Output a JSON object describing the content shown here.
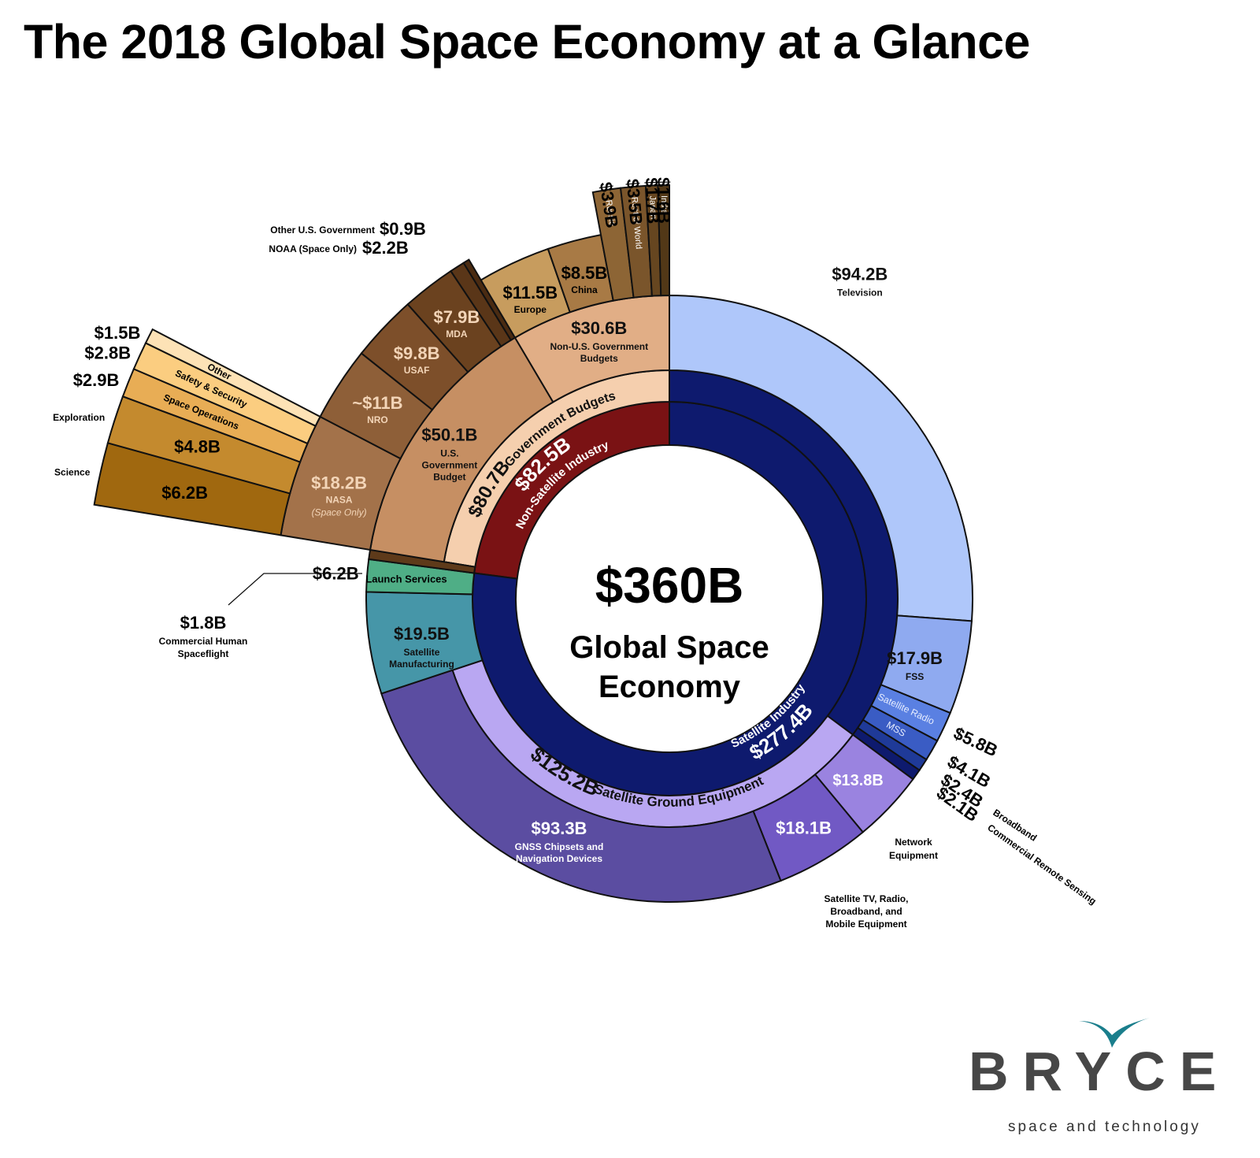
{
  "title": "The 2018 Global Space Economy at a Glance",
  "logo": {
    "wordmark": "BRYCE",
    "tagline": "space and technology",
    "color": "#474747",
    "accent": "#1a7e8c"
  },
  "chart_data": {
    "type": "sunburst",
    "total": {
      "value": "$360B",
      "label": "Global Space Economy"
    },
    "rings": {
      "inner": [
        {
          "id": "nonsat",
          "value": 82.5,
          "label_value": "$82.5B",
          "label": "Non-Satellite Industry",
          "color": "#7a1214"
        },
        {
          "id": "sat",
          "value": 277.4,
          "label_value": "$277.4B",
          "label": "Satellite Industry",
          "color": "#0e1a6e"
        }
      ],
      "middle": [
        {
          "parent": "nonsat",
          "value": 80.7,
          "label_value": "$80.7B",
          "label": "Government Budgets",
          "color": "#f5cfae"
        },
        {
          "parent": "nonsat",
          "value": 1.8,
          "label_value": "",
          "label": "",
          "color": "#5e3a1a"
        },
        {
          "parent": "sat",
          "value": 125.2,
          "label_value": "$125.2B",
          "label": "Satellite Ground Equipment",
          "color": "#b9a7f2"
        }
      ],
      "outer": [
        {
          "group": "Government",
          "value": 50.1,
          "label_value": "$50.1B",
          "label": "U.S. Government Budget",
          "color": "#c68f63"
        },
        {
          "group": "Government",
          "value": 30.6,
          "label_value": "$30.6B",
          "label": "Non-U.S. Government Budgets",
          "color": "#e1ae86"
        },
        {
          "group": "Non-satellite",
          "value": 1.8,
          "label_value": "$1.8B",
          "label": "Commercial Human Spaceflight",
          "color": "#5e3a1a"
        },
        {
          "group": "Satellite",
          "value": 6.2,
          "label_value": "$6.2B",
          "label": "Launch Services",
          "color": "#4fae86"
        },
        {
          "group": "Satellite",
          "value": 19.5,
          "label_value": "$19.5B",
          "label": "Satellite Manufacturing",
          "color": "#4696a8"
        },
        {
          "group": "Ground",
          "value": 93.3,
          "label_value": "$93.3B",
          "label": "GNSS Chipsets and Navigation Devices",
          "color": "#5b4da1"
        },
        {
          "group": "Ground",
          "value": 18.1,
          "label_value": "$18.1B",
          "label": "Satellite TV, Radio, Broadband, and Mobile Equipment",
          "color": "#7159c4"
        },
        {
          "group": "Ground",
          "value": 13.8,
          "label_value": "$13.8B",
          "label": "Network Equipment",
          "color": "#9a83e0"
        },
        {
          "group": "Services",
          "value": 2.1,
          "label_value": "$2.1B",
          "label": "Commercial Remote Sensing",
          "color": "#0e1a6e"
        },
        {
          "group": "Services",
          "value": 2.4,
          "label_value": "$2.4B",
          "label": "Broadband",
          "color": "#1f3a98"
        },
        {
          "group": "Services",
          "value": 4.1,
          "label_value": "$4.1B",
          "label": "MSS",
          "color": "#3a5cc4"
        },
        {
          "group": "Services",
          "value": 5.8,
          "label_value": "$5.8B",
          "label": "Satellite Radio",
          "color": "#5a80e2"
        },
        {
          "group": "Services",
          "value": 17.9,
          "label_value": "$17.9B",
          "label": "FSS",
          "color": "#8faaf0"
        },
        {
          "group": "Services",
          "value": 94.2,
          "label_value": "$94.2B",
          "label": "Television",
          "color": "#afc7fa"
        }
      ],
      "us_gov": [
        {
          "value": 18.2,
          "label_value": "$18.2B",
          "label": "NASA",
          "sub": "(Space Only)",
          "color": "#a3724a"
        },
        {
          "value": 11,
          "label_value": "~$11B",
          "label": "NRO",
          "sub": "",
          "color": "#8e5f38"
        },
        {
          "value": 9.8,
          "label_value": "$9.8B",
          "label": "USAF",
          "sub": "",
          "color": "#7d4f2a"
        },
        {
          "value": 7.9,
          "label_value": "$7.9B",
          "label": "MDA",
          "sub": "",
          "color": "#6b421f"
        },
        {
          "value": 2.2,
          "label_value": "$2.2B",
          "label": "NOAA (Space Only)",
          "sub": "",
          "color": "#5a3618"
        },
        {
          "value": 0.9,
          "label_value": "$0.9B",
          "label": "Other U.S. Government",
          "sub": "",
          "color": "#4a2b12"
        }
      ],
      "non_us_gov": [
        {
          "value": 11.5,
          "label_value": "$11.5B",
          "label": "Europe",
          "color": "#c79c5e"
        },
        {
          "value": 8.5,
          "label_value": "$8.5B",
          "label": "China",
          "color": "#a87a45"
        },
        {
          "value": 3.9,
          "label_value": "$3.9B",
          "label": "Russia",
          "color": "#8d6535"
        },
        {
          "value": 3.5,
          "label_value": "$3.5B",
          "label": "Rest of World",
          "color": "#7a552b"
        },
        {
          "value": 1.7,
          "label_value": "$1.7B",
          "label": "Japan",
          "color": "#664620"
        },
        {
          "value": 1.6,
          "label_value": "$1.6B",
          "label": "India",
          "color": "#523817"
        }
      ],
      "nasa": [
        {
          "value": 6.2,
          "label_value": "$6.2B",
          "label": "Science",
          "color": "#a0680f"
        },
        {
          "value": 4.8,
          "label_value": "$4.8B",
          "label": "Exploration",
          "color": "#c48a2e"
        },
        {
          "value": 2.9,
          "label_value": "$2.9B",
          "label": "Space Operations",
          "color": "#e8ad55"
        },
        {
          "value": 2.8,
          "label_value": "$2.8B",
          "label": "Safety & Security",
          "color": "#fbcd80"
        },
        {
          "value": 1.5,
          "label_value": "$1.5B",
          "label": "Other",
          "color": "#fde2b6"
        }
      ]
    }
  }
}
